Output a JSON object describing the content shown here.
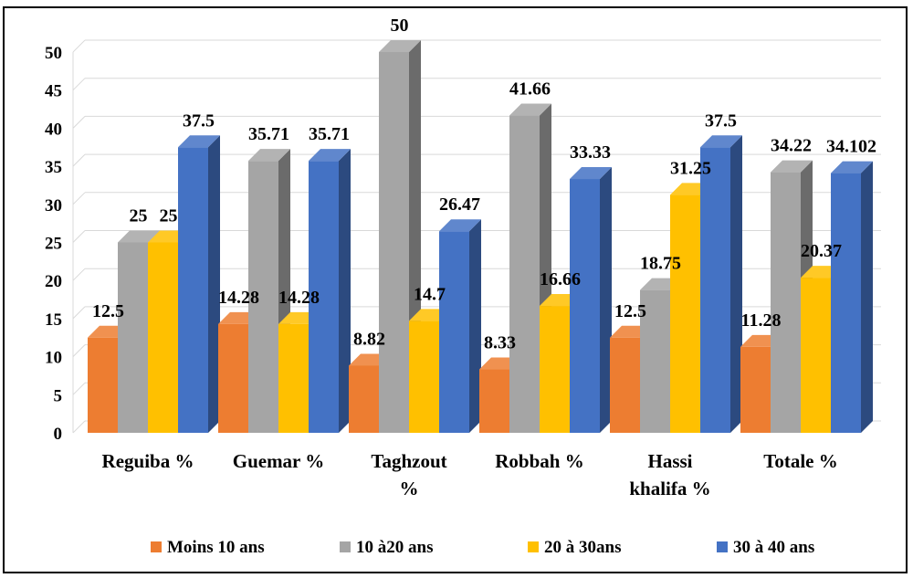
{
  "chart_data": {
    "type": "bar",
    "title": "",
    "xlabel": "",
    "ylabel": "",
    "ylim": [
      0,
      50
    ],
    "yticks": [
      0,
      5,
      10,
      15,
      20,
      25,
      30,
      35,
      40,
      45,
      50
    ],
    "grid": true,
    "legend_position": "bottom",
    "categories": [
      [
        "Reguiba %"
      ],
      [
        "Guemar %"
      ],
      [
        "Taghzout",
        "%"
      ],
      [
        "Robbah %"
      ],
      [
        "Hassi",
        "khalifa %"
      ],
      [
        "Totale %"
      ]
    ],
    "series": [
      {
        "name": "Moins 10 ans",
        "color": "#ED7D31",
        "values": [
          12.5,
          14.28,
          8.82,
          8.33,
          12.5,
          11.28
        ]
      },
      {
        "name": "10 à20 ans",
        "color": "#A5A5A5",
        "values": [
          25,
          35.71,
          50,
          41.66,
          18.75,
          34.22
        ]
      },
      {
        "name": "20 à 30ans",
        "color": "#FFC000",
        "values": [
          25,
          14.28,
          14.7,
          16.66,
          31.25,
          20.37
        ]
      },
      {
        "name": "30 à 40 ans",
        "color": "#4472C4",
        "values": [
          37.5,
          35.71,
          26.47,
          33.33,
          37.5,
          34.102
        ]
      }
    ]
  }
}
